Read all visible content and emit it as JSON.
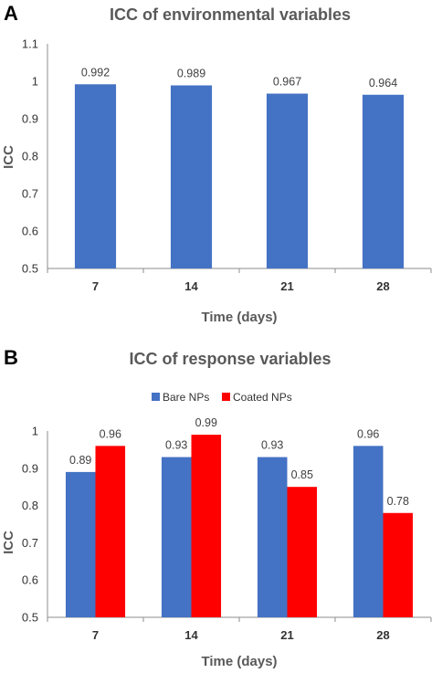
{
  "panels": [
    {
      "letter": "A",
      "chart_index": 0
    },
    {
      "letter": "B",
      "chart_index": 1
    }
  ],
  "chart_data": [
    {
      "type": "bar",
      "title": "ICC of environmental variables",
      "xlabel": "Time (days)",
      "ylabel": "ICC",
      "categories": [
        "7",
        "14",
        "21",
        "28"
      ],
      "series": [
        {
          "values": [
            0.992,
            0.989,
            0.967,
            0.964
          ],
          "labels": [
            "0.992",
            "0.989",
            "0.967",
            "0.964"
          ],
          "color": "#4472C4"
        }
      ],
      "ylim": [
        0.5,
        1.1
      ],
      "yticks": [
        "0.5",
        "0.6",
        "0.7",
        "0.8",
        "0.9",
        "1",
        "1.1"
      ],
      "grid": false,
      "legend": "none"
    },
    {
      "type": "bar",
      "title": "ICC of response variables",
      "xlabel": "Time (days)",
      "ylabel": "ICC",
      "categories": [
        "7",
        "14",
        "21",
        "28"
      ],
      "series": [
        {
          "name": "Bare NPs",
          "values": [
            0.89,
            0.93,
            0.93,
            0.96
          ],
          "labels": [
            "0.89",
            "0.93",
            "0.93",
            "0.96"
          ],
          "color": "#4472C4"
        },
        {
          "name": "Coated NPs",
          "values": [
            0.96,
            0.99,
            0.85,
            0.78
          ],
          "labels": [
            "0.96",
            "0.99",
            "0.85",
            "0.78"
          ],
          "color": "#FF0000"
        }
      ],
      "ylim": [
        0.5,
        1.0
      ],
      "yticks": [
        "0.5",
        "0.6",
        "0.7",
        "0.8",
        "0.9",
        "1"
      ],
      "grid": false,
      "legend": "top"
    }
  ]
}
